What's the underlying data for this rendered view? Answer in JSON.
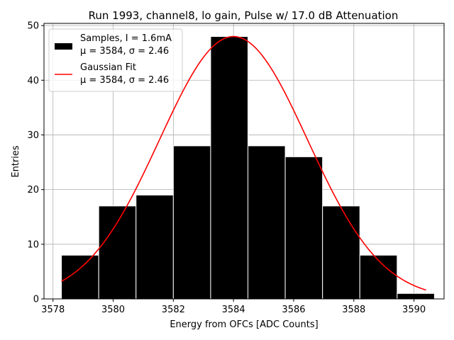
{
  "chart_data": {
    "type": "bar",
    "title": "Run 1993, channel8, lo gain, Pulse w/ 17.0 dB Attenuation",
    "xlabel": "Energy from OFCs [ADC Counts]",
    "ylabel": "Entries",
    "xlim": [
      3577.7,
      3591.0
    ],
    "ylim": [
      0,
      50.4
    ],
    "xticks": [
      3578,
      3580,
      3582,
      3584,
      3586,
      3588,
      3590
    ],
    "yticks": [
      0,
      10,
      20,
      30,
      40,
      50
    ],
    "grid": true,
    "legend_position": "top-left",
    "bins": [
      {
        "x0": 3578.28,
        "x1": 3579.52,
        "count": 8
      },
      {
        "x0": 3579.52,
        "x1": 3580.76,
        "count": 17
      },
      {
        "x0": 3580.76,
        "x1": 3582.0,
        "count": 19
      },
      {
        "x0": 3582.0,
        "x1": 3583.24,
        "count": 28
      },
      {
        "x0": 3583.24,
        "x1": 3584.48,
        "count": 48
      },
      {
        "x0": 3584.48,
        "x1": 3585.72,
        "count": 28
      },
      {
        "x0": 3585.72,
        "x1": 3586.96,
        "count": 26
      },
      {
        "x0": 3586.96,
        "x1": 3588.2,
        "count": 17
      },
      {
        "x0": 3588.2,
        "x1": 3589.44,
        "count": 8
      },
      {
        "x0": 3589.44,
        "x1": 3590.68,
        "count": 1
      }
    ],
    "fit": {
      "name": "Gaussian Fit",
      "amplitude": 48,
      "mu": 3584,
      "sigma": 2.46,
      "x_range": [
        3578.28,
        3590.4
      ]
    },
    "series": [
      {
        "name": "Samples, I = 1.6mA",
        "stats": "μ = 3584, σ = 2.46",
        "color": "#000000"
      },
      {
        "name": "Gaussian Fit",
        "stats": "μ = 3584, σ = 2.46",
        "color": "#ff0000"
      }
    ]
  }
}
